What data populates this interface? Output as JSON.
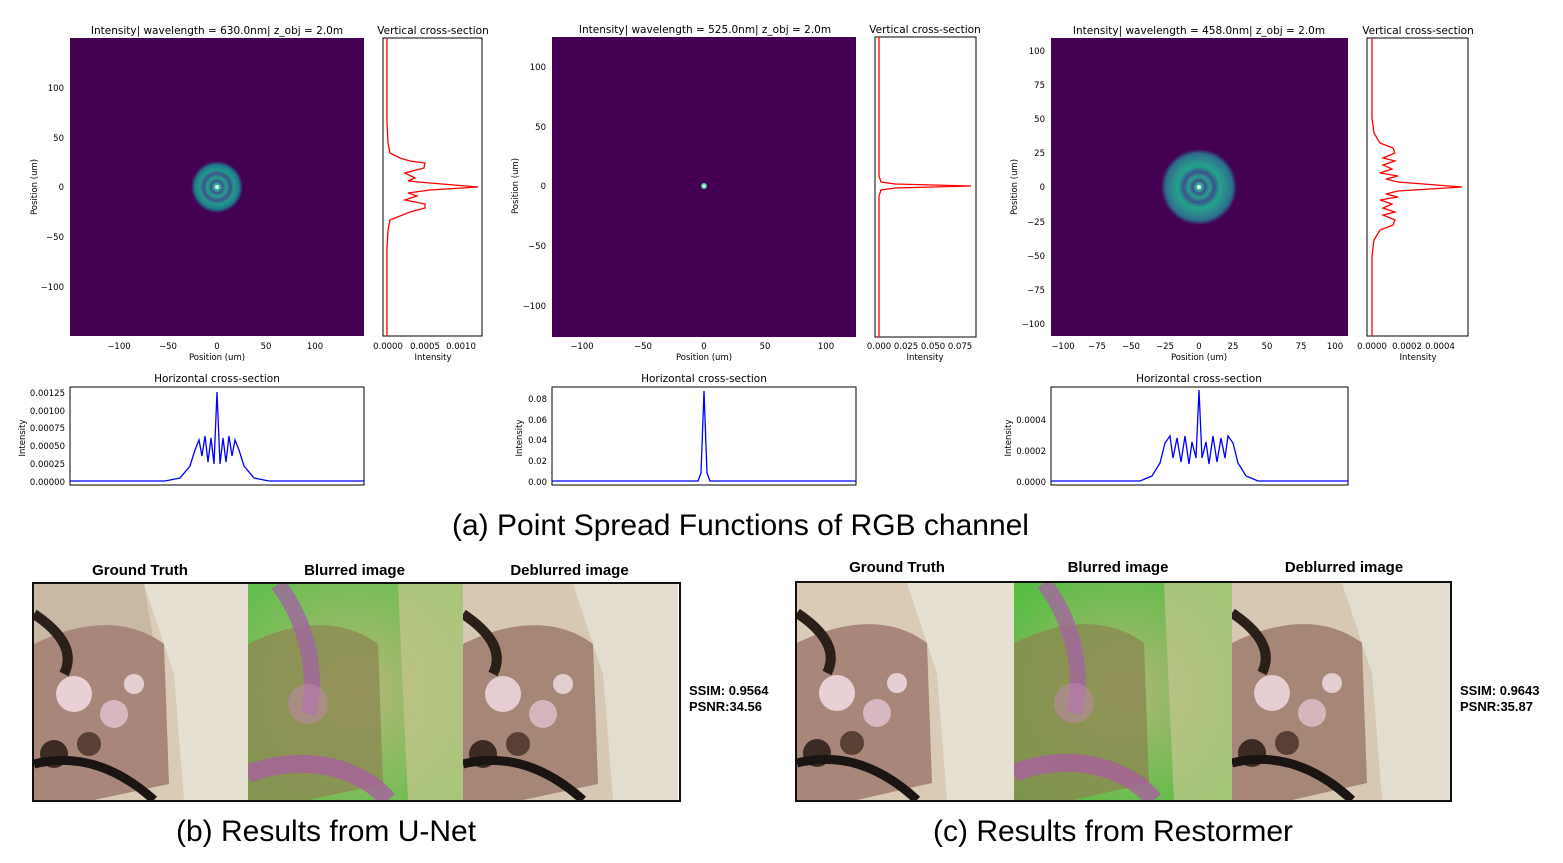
{
  "captions": {
    "a": "(a) Point Spread Functions of RGB channel",
    "b": "(b) Results from U-Net",
    "c": "(c) Results from Restormer"
  },
  "psf_panels": [
    {
      "title": "Intensity| wavelength = 630.0nm| z_obj = 2.0m",
      "vertical_title": "Vertical cross-section",
      "horizontal_title": "Horizontal cross-section",
      "xlabel": "Position (um)",
      "ylabel": "Position (um)",
      "intensity_label": "Intensity",
      "x_ticks": [
        "−100",
        "−50",
        "0",
        "50",
        "100"
      ],
      "y_ticks": [
        "100",
        "50",
        "0",
        "−50",
        "−100"
      ],
      "v_ticks": [
        "0.0000",
        "0.0005",
        "0.0010"
      ],
      "h_ticks": [
        "0.00125",
        "0.00100",
        "0.00075",
        "0.00050",
        "0.00025",
        "0.00000"
      ]
    },
    {
      "title": "Intensity| wavelength = 525.0nm| z_obj = 2.0m",
      "vertical_title": "Vertical cross-section",
      "horizontal_title": "Horizontal cross-section",
      "xlabel": "Position (um)",
      "ylabel": "Position (um)",
      "intensity_label": "Intensity",
      "x_ticks": [
        "−100",
        "−50",
        "0",
        "50",
        "100"
      ],
      "y_ticks": [
        "100",
        "50",
        "0",
        "−50",
        "−100"
      ],
      "v_ticks": [
        "0.000",
        "0.025",
        "0.050",
        "0.075"
      ],
      "h_ticks": [
        "0.08",
        "0.06",
        "0.04",
        "0.02",
        "0.00"
      ]
    },
    {
      "title": "Intensity| wavelength = 458.0nm| z_obj = 2.0m",
      "vertical_title": "Vertical cross-section",
      "horizontal_title": "Horizontal cross-section",
      "xlabel": "Position (um)",
      "ylabel": "Position (um)",
      "intensity_label": "Intensity",
      "x_ticks": [
        "−100",
        "−75",
        "−50",
        "−25",
        "0",
        "25",
        "50",
        "75",
        "100"
      ],
      "y_ticks": [
        "100",
        "75",
        "50",
        "25",
        "0",
        "−25",
        "−50",
        "−75",
        "−100"
      ],
      "v_ticks": [
        "0.0000",
        "0.0002",
        "0.0004"
      ],
      "h_ticks": [
        "0.0004",
        "0.0002",
        "0.0000"
      ]
    }
  ],
  "results": [
    {
      "labels": [
        "Ground Truth",
        "Blurred image",
        "Deblurred image"
      ],
      "ssim": "SSIM: 0.9564",
      "psnr": "PSNR:34.56"
    },
    {
      "labels": [
        "Ground Truth",
        "Blurred image",
        "Deblurred image"
      ],
      "ssim": "SSIM: 0.9643",
      "psnr": "PSNR:35.87"
    }
  ],
  "colors": {
    "psf_background": "#440154",
    "ring": "#2a9d8f",
    "vertical_profile": "#ff0000",
    "horizontal_profile": "#0000ff"
  }
}
